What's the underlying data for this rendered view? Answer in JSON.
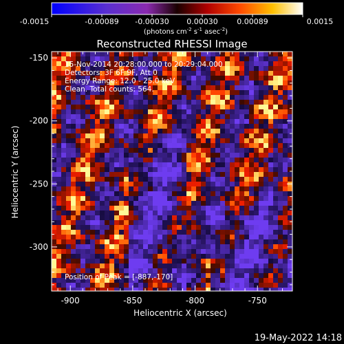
{
  "colorbar": {
    "tick_labels": [
      "-0.0015",
      "-0.00089",
      "-0.00030",
      "0.00030",
      "0.00089",
      "0.0015"
    ],
    "unit_label_prefix": "(photons cm",
    "unit_label_sup1": "-2",
    "unit_label_mid1": " s",
    "unit_label_sup2": "-1",
    "unit_label_mid2": " asec",
    "unit_label_sup3": "-2",
    "unit_label_suffix": ")"
  },
  "annotations": {
    "line1": "15-Nov-2014 20:28:00.000 to 20:29:04.000",
    "line2": "Detectors: 3F 6F 9F, Att 0",
    "line3": "Energy Range: 12.0 - 25.0 keV",
    "line4": "Clean.   Total counts: 564.",
    "peak": "Position of Peak = [-887,-170]"
  },
  "footer": {
    "timestamp": "19-May-2022 14:18"
  },
  "chart_data": {
    "type": "heatmap",
    "title": "Reconstructed RHESSI Image",
    "xlabel": "Heliocentric X (arcsec)",
    "ylabel": "Heliocentric Y (arcsec)",
    "xlim": [
      -915,
      -722
    ],
    "ylim": [
      -335,
      -145
    ],
    "x_ticks": [
      -900,
      -850,
      -800,
      -750
    ],
    "y_ticks": [
      -150,
      -200,
      -250,
      -300
    ],
    "x_tick_labels": [
      "-900",
      "-850",
      "-800",
      "-750"
    ],
    "y_tick_labels": [
      "-150",
      "-200",
      "-250",
      "-300"
    ],
    "colormap_range": [
      -0.0015,
      0.0015
    ],
    "peak_position": [
      -887,
      -170
    ],
    "colors": {
      "negative_low": "#0000ff",
      "negative_mid": "#6a3fc8",
      "zero": "#000000",
      "positive_mid": "#d83400",
      "positive_high": "#ffc800",
      "positive_max": "#ffffff"
    }
  }
}
